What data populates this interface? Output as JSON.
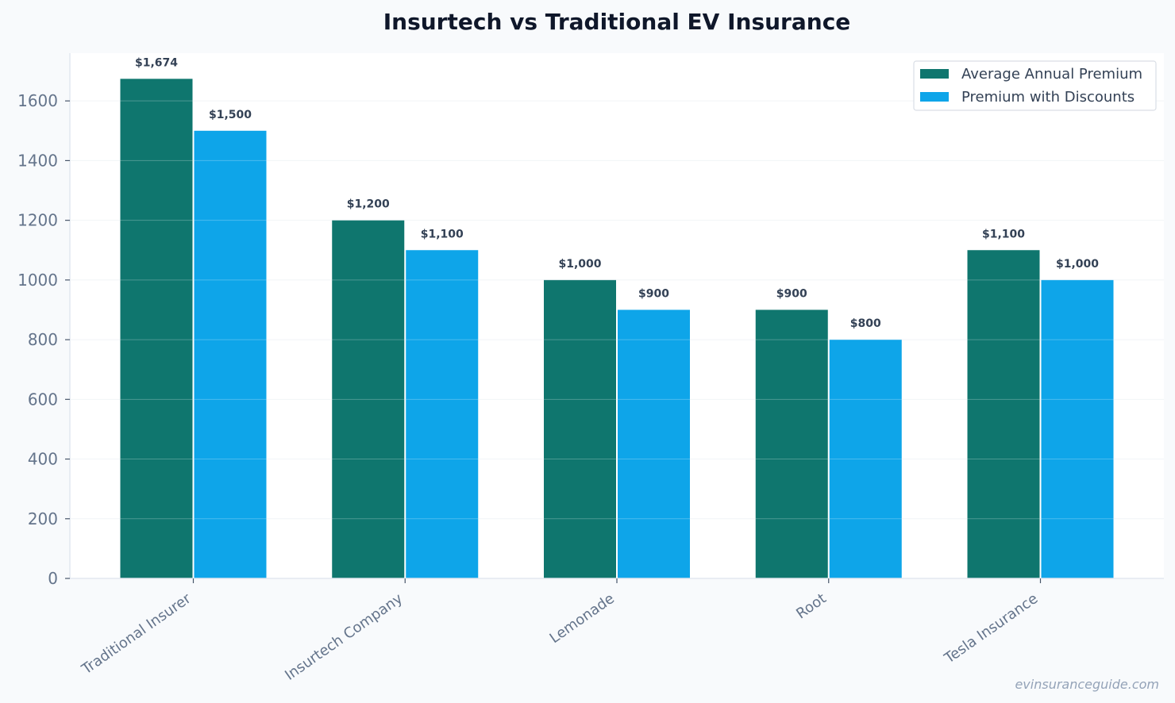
{
  "chart_data": {
    "type": "bar",
    "title": "Insurtech vs Traditional EV Insurance",
    "xlabel": "",
    "ylabel": "",
    "categories": [
      "Traditional Insurer",
      "Insurtech Company",
      "Lemonade",
      "Root",
      "Tesla Insurance"
    ],
    "series": [
      {
        "name": "Average Annual Premium",
        "color": "#0f766e",
        "values": [
          1674,
          1200,
          1000,
          900,
          1100
        ],
        "labels": [
          "$1,674",
          "$1,200",
          "$1,000",
          "$900",
          "$1,100"
        ]
      },
      {
        "name": "Premium with Discounts",
        "color": "#0ea5e9",
        "values": [
          1500,
          1100,
          900,
          800,
          1000
        ],
        "labels": [
          "$1,500",
          "$1,100",
          "$900",
          "$800",
          "$1,000"
        ]
      }
    ],
    "ylim": [
      0,
      1760
    ],
    "yticks": [
      0,
      200,
      400,
      600,
      800,
      1000,
      1200,
      1400,
      1600
    ],
    "grid": true,
    "legend_position": "top-right"
  },
  "watermark": "evinsuranceguide.com"
}
